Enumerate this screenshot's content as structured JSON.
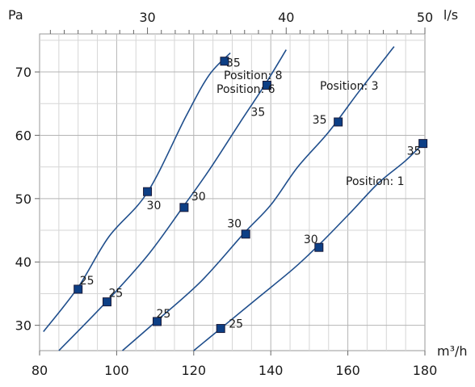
{
  "chart_data": {
    "type": "line",
    "title": "",
    "x_unit": "m³/h",
    "y_unit": "Pa",
    "top_axis_unit": "l/s",
    "xlim": [
      80,
      180
    ],
    "ylim": [
      26,
      76
    ],
    "top_axis": {
      "factor": 3.6,
      "ticks": [
        30,
        40,
        50
      ]
    },
    "x_ticks": [
      80,
      100,
      120,
      140,
      160,
      180
    ],
    "y_ticks": [
      30,
      40,
      50,
      60,
      70
    ],
    "grid": true,
    "colors": {
      "curve": "#1f4e8c",
      "marker": "#0d3f85"
    },
    "series": [
      {
        "name": "Position: 8",
        "curve": [
          [
            81,
            29
          ],
          [
            90,
            36
          ],
          [
            98,
            44
          ],
          [
            108,
            51
          ],
          [
            118,
            63
          ],
          [
            124,
            69.5
          ],
          [
            129.5,
            73
          ]
        ],
        "markers": [
          {
            "x": 90,
            "y": 35.7,
            "label": "25"
          },
          {
            "x": 108,
            "y": 51.1,
            "label": "30"
          },
          {
            "x": 128,
            "y": 71.7,
            "label": "35"
          }
        ]
      },
      {
        "name": "Position: 6",
        "curve": [
          [
            85,
            26
          ],
          [
            97,
            33.5
          ],
          [
            108,
            41
          ],
          [
            117,
            48.5
          ],
          [
            124,
            54.5
          ],
          [
            132,
            62
          ],
          [
            138.5,
            68
          ],
          [
            144,
            73.5
          ]
        ],
        "markers": [
          {
            "x": 97.5,
            "y": 33.7,
            "label": "25"
          },
          {
            "x": 117.5,
            "y": 48.6,
            "label": "30"
          },
          {
            "x": 139,
            "y": 67.9,
            "label": "35"
          }
        ]
      },
      {
        "name": "Position: 3",
        "curve": [
          [
            101.5,
            26
          ],
          [
            110,
            30.5
          ],
          [
            122,
            37
          ],
          [
            133,
            44.5
          ],
          [
            140,
            49
          ],
          [
            147,
            55
          ],
          [
            155,
            60.5
          ],
          [
            163,
            67
          ],
          [
            172,
            74
          ]
        ],
        "markers": [
          {
            "x": 110.5,
            "y": 30.6,
            "label": "25"
          },
          {
            "x": 133.5,
            "y": 44.4,
            "label": "30"
          },
          {
            "x": 157.5,
            "y": 62.1,
            "label": "35"
          }
        ]
      },
      {
        "name": "Position: 1",
        "curve": [
          [
            120,
            26
          ],
          [
            127,
            29.5
          ],
          [
            137,
            34.5
          ],
          [
            146,
            39
          ],
          [
            153,
            43
          ],
          [
            161,
            48
          ],
          [
            168,
            52.5
          ],
          [
            175,
            56
          ],
          [
            180,
            59
          ]
        ],
        "markers": [
          {
            "x": 127,
            "y": 29.5,
            "label": "25"
          },
          {
            "x": 152.5,
            "y": 42.3,
            "label": "30"
          },
          {
            "x": 179.5,
            "y": 58.7,
            "label": "35"
          }
        ]
      }
    ]
  }
}
